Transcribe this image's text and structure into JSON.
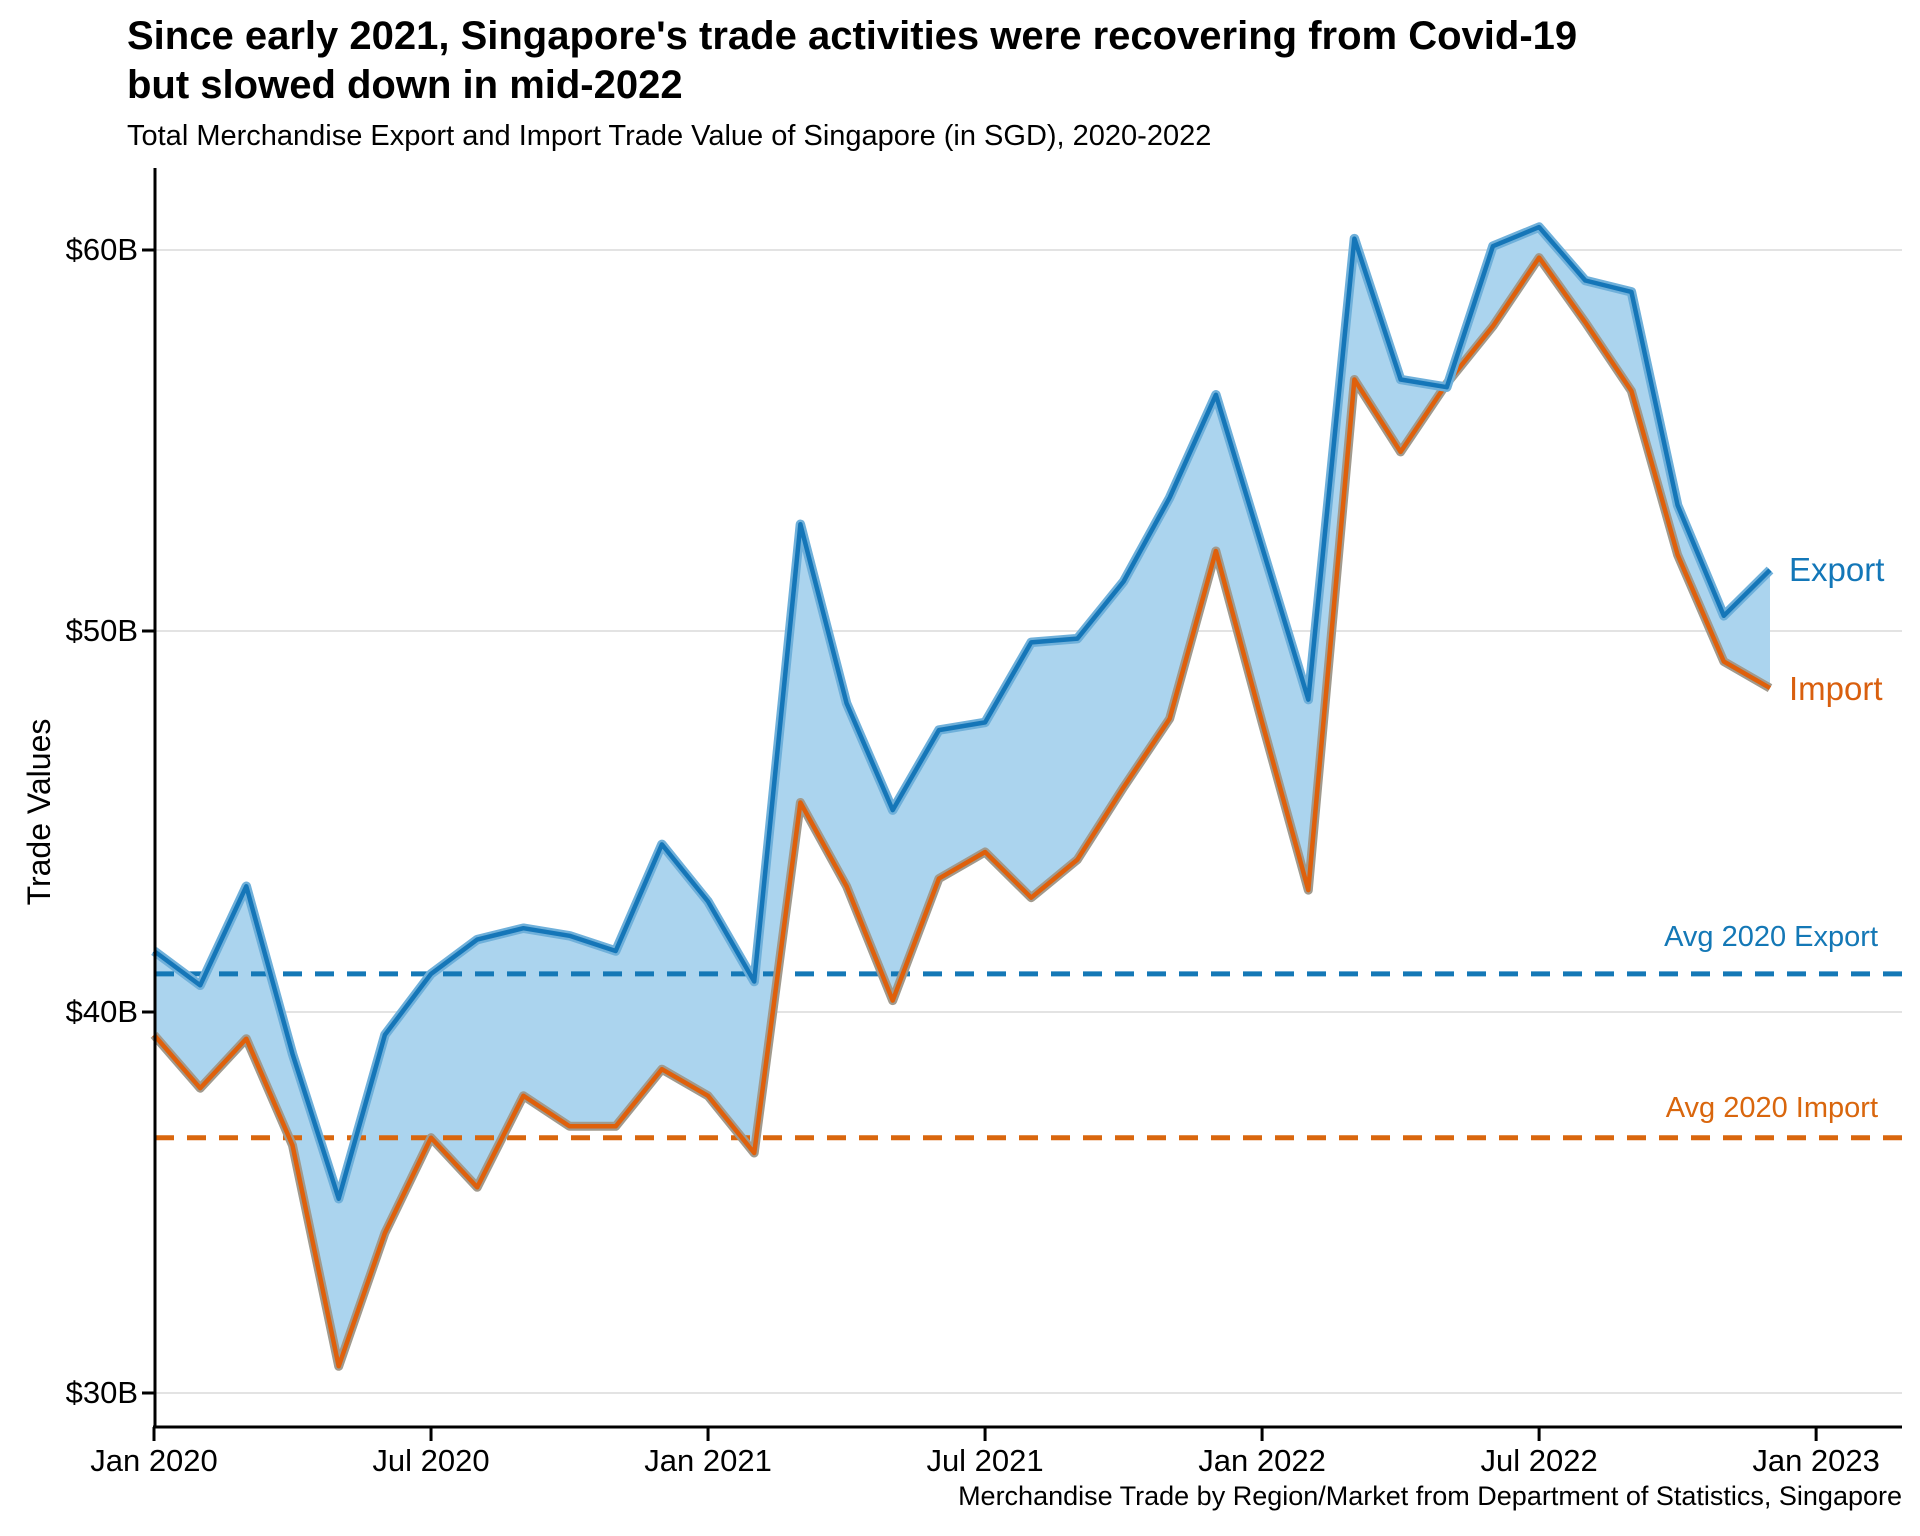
{
  "title": "Since early 2021, Singapore's trade activities were recovering from Covid-19\nbut slowed down in mid-2022",
  "subtitle": "Total Merchandise Export and Import Trade Value of Singapore (in SGD), 2020-2022",
  "caption": "Merchandise Trade by Region/Market from Department of Statistics, Singapore",
  "y_axis": {
    "label": "Trade Values",
    "ticks": [
      {
        "label": "$60B",
        "value": 60
      },
      {
        "label": "$50B",
        "value": 50
      },
      {
        "label": "$40B",
        "value": 40
      },
      {
        "label": "$30B",
        "value": 30
      }
    ]
  },
  "x_axis": {
    "ticks": [
      {
        "label": "Jan 2020",
        "month_index": 0
      },
      {
        "label": "Jul 2020",
        "month_index": 6
      },
      {
        "label": "Jan 2021",
        "month_index": 12
      },
      {
        "label": "Jul 2021",
        "month_index": 18
      },
      {
        "label": "Jan 2022",
        "month_index": 24
      },
      {
        "label": "Jul 2022",
        "month_index": 30
      },
      {
        "label": "Jan 2023",
        "month_index": 36
      }
    ]
  },
  "annotations": {
    "avg_export_label": "Avg 2020 Export",
    "avg_import_label": "Avg 2020 Import",
    "export_label": "Export",
    "import_label": "Import"
  },
  "colors": {
    "export_line": "#1576b8",
    "export_halo": "#6fb0da",
    "import_line": "#df600b",
    "import_halo": "#a09a8e",
    "ribbon_fill": "#abd4ee",
    "avg_export_dash": "#1478b6",
    "avg_import_dash": "#d9660d",
    "gridline": "#e3e3e3",
    "axis": "#000000",
    "export_label_text": "#1377b8",
    "import_label_text": "#d95f0e"
  },
  "chart_data": {
    "type": "area",
    "title": "Total Merchandise Export and Import Trade Value of Singapore (in SGD), 2020-2022",
    "xlabel": "",
    "ylabel": "Trade Values",
    "unit": "SGD billions",
    "ylim": [
      29.1,
      62.2
    ],
    "grid": "horizontal",
    "legend_position": "right-of-line-ends",
    "x": [
      "Jan 2020",
      "Feb 2020",
      "Mar 2020",
      "Apr 2020",
      "May 2020",
      "Jun 2020",
      "Jul 2020",
      "Aug 2020",
      "Sep 2020",
      "Oct 2020",
      "Nov 2020",
      "Dec 2020",
      "Jan 2021",
      "Feb 2021",
      "Mar 2021",
      "Apr 2021",
      "May 2021",
      "Jun 2021",
      "Jul 2021",
      "Aug 2021",
      "Sep 2021",
      "Oct 2021",
      "Nov 2021",
      "Dec 2021",
      "Jan 2022",
      "Feb 2022",
      "Mar 2022",
      "Apr 2022",
      "May 2022",
      "Jun 2022",
      "Jul 2022",
      "Aug 2022",
      "Sep 2022",
      "Oct 2022",
      "Nov 2022",
      "Dec 2022"
    ],
    "series": [
      {
        "name": "Export",
        "values": [
          41.6,
          40.7,
          43.3,
          38.9,
          35.1,
          39.4,
          41.0,
          41.9,
          42.2,
          42.0,
          41.6,
          44.4,
          42.9,
          40.8,
          52.8,
          48.1,
          45.3,
          47.4,
          47.6,
          49.7,
          49.8,
          51.3,
          53.5,
          56.2,
          52.2,
          48.2,
          60.3,
          56.6,
          56.4,
          60.1,
          60.6,
          59.2,
          58.9,
          53.3,
          50.4,
          51.6
        ]
      },
      {
        "name": "Import",
        "values": [
          39.4,
          38.0,
          39.3,
          36.5,
          30.7,
          34.2,
          36.7,
          35.4,
          37.8,
          37.0,
          37.0,
          38.5,
          37.8,
          36.3,
          45.5,
          43.3,
          40.3,
          43.5,
          44.2,
          43.0,
          44.0,
          45.9,
          47.7,
          52.1,
          47.6,
          43.2,
          56.6,
          54.7,
          56.5,
          58.0,
          59.8,
          58.1,
          56.3,
          52.0,
          49.2,
          48.5
        ]
      }
    ],
    "reference_lines": [
      {
        "name": "Avg 2020 Export",
        "value": 41.0,
        "style": "dashed"
      },
      {
        "name": "Avg 2020 Import",
        "value": 36.7,
        "style": "dashed"
      }
    ]
  }
}
